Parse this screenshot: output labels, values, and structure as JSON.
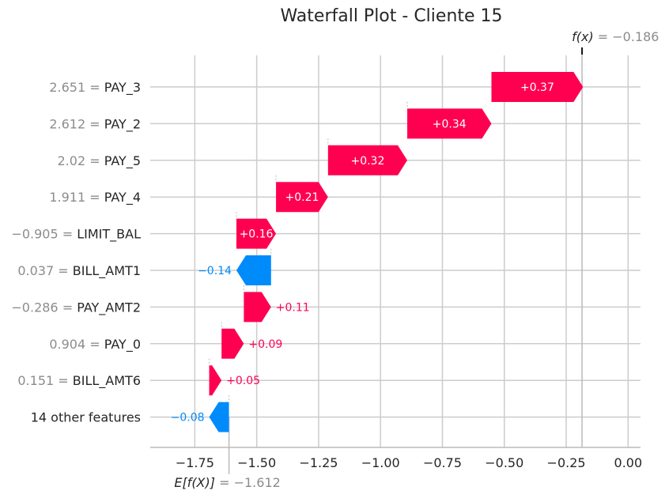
{
  "chart_data": {
    "type": "waterfall",
    "title": "Waterfall Plot - Cliente 15",
    "fx_symbol": "f(x)",
    "fx_equals": "= −0.186",
    "efx_symbol": "E[f(X)]",
    "efx_equals": "= −1.612",
    "base_value": -1.612,
    "output_value": -0.186,
    "xlim": [
      -1.93,
      0.05
    ],
    "xticks": [
      -1.75,
      -1.5,
      -1.25,
      -1.0,
      -0.75,
      -0.5,
      -0.25,
      0.0
    ],
    "xtick_labels": [
      "−1.75",
      "−1.50",
      "−1.25",
      "−1.00",
      "−0.75",
      "−0.50",
      "−0.25",
      "0.00"
    ],
    "features": [
      {
        "value_text": "2.651 =",
        "name": "PAY_3",
        "contribution": 0.37,
        "label": "+0.37"
      },
      {
        "value_text": "2.612 =",
        "name": "PAY_2",
        "contribution": 0.34,
        "label": "+0.34"
      },
      {
        "value_text": "2.02 =",
        "name": "PAY_5",
        "contribution": 0.32,
        "label": "+0.32"
      },
      {
        "value_text": "1.911 =",
        "name": "PAY_4",
        "contribution": 0.21,
        "label": "+0.21"
      },
      {
        "value_text": "−0.905 =",
        "name": "LIMIT_BAL",
        "contribution": 0.16,
        "label": "+0.16"
      },
      {
        "value_text": "0.037 =",
        "name": "BILL_AMT1",
        "contribution": -0.14,
        "label": "−0.14"
      },
      {
        "value_text": "−0.286 =",
        "name": "PAY_AMT2",
        "contribution": 0.11,
        "label": "+0.11"
      },
      {
        "value_text": "0.904 =",
        "name": "PAY_0",
        "contribution": 0.09,
        "label": "+0.09"
      },
      {
        "value_text": "0.151 =",
        "name": "BILL_AMT6",
        "contribution": 0.05,
        "label": "+0.05"
      },
      {
        "value_text": "",
        "name": "14 other features",
        "contribution": -0.08,
        "label": "−0.08"
      }
    ],
    "colors": {
      "positive": "#ff0051",
      "negative": "#008bfb",
      "grid": "#cccccc",
      "text": "#262626",
      "muted": "#8c8c8c"
    },
    "grid": true
  }
}
